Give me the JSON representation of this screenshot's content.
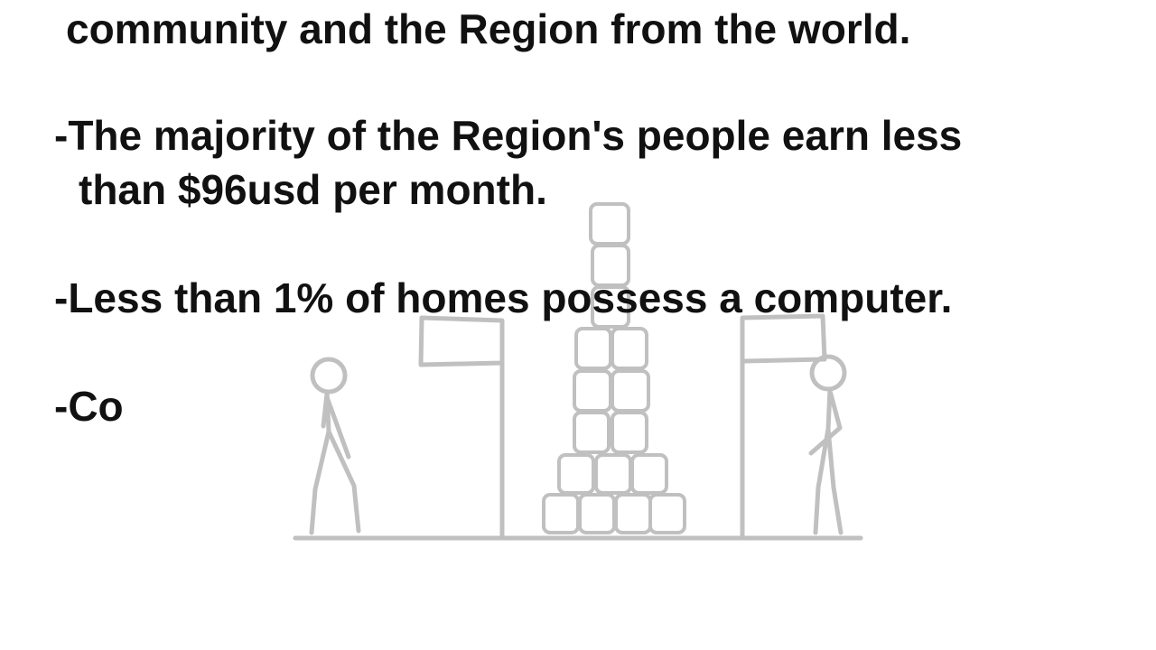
{
  "slide": {
    "lines": [
      "community and the Region from the world.",
      "-The majority of the Region's people earn less",
      "than $96usd per month.",
      "-Less than 1% of homes possess a computer.",
      "-Co"
    ]
  },
  "illustration": {
    "icon": "two-stick-figures-with-flags-and-stacked-blocks",
    "stroke_color": "#c0c0c0"
  }
}
